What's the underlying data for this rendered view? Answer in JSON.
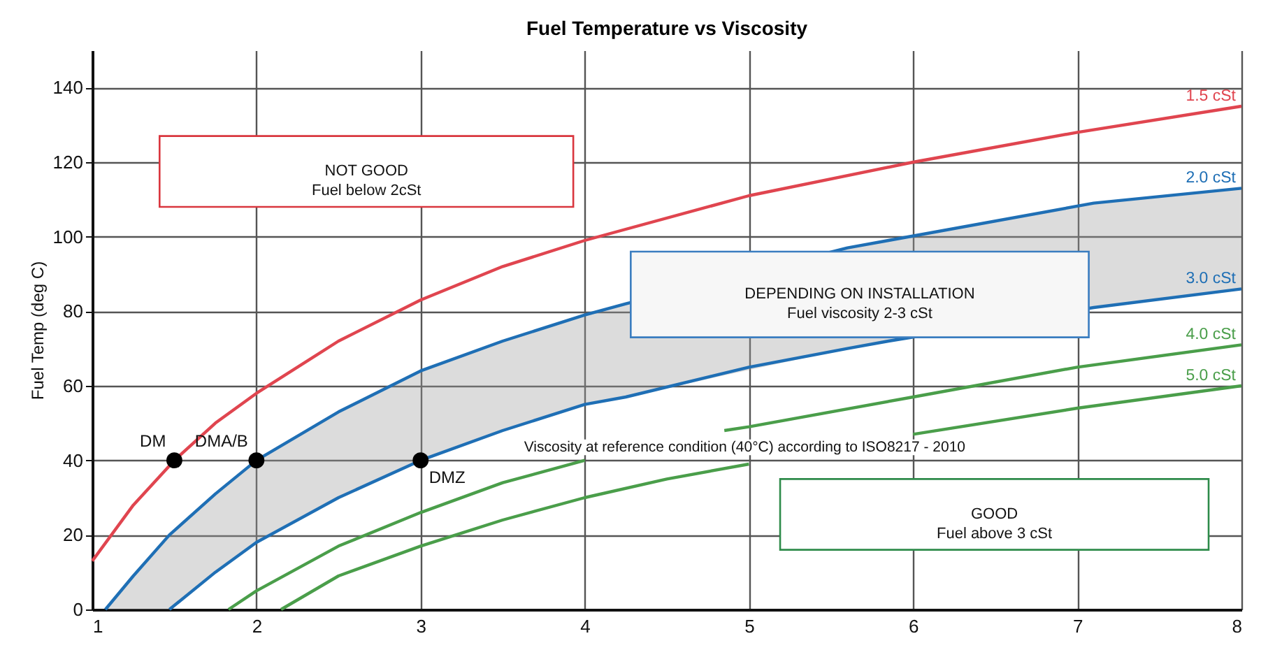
{
  "chart_data": {
    "type": "line",
    "title": "Fuel Temperature vs Viscosity",
    "ylabel": "Fuel Temp (deg C)",
    "xlim": [
      1,
      8
    ],
    "xticks": [
      1,
      2,
      3,
      4,
      5,
      6,
      7,
      8
    ],
    "ylim": [
      0,
      150
    ],
    "yticks": [
      0,
      20,
      40,
      60,
      80,
      100,
      120,
      140
    ],
    "grid": true,
    "marker": "none",
    "line_style": "solid",
    "series": [
      {
        "name": "1.5 cSt",
        "color": "#e0454f",
        "x": [
          1,
          1.25,
          1.5,
          1.75,
          2,
          2.5,
          3,
          3.5,
          4,
          5,
          6,
          7,
          8
        ],
        "values": [
          13,
          28,
          40,
          50,
          58,
          72,
          83,
          92,
          99,
          111,
          120,
          128,
          135
        ]
      },
      {
        "name": "2.0 cSt",
        "color": "#1f6fb5",
        "x": [
          1.08,
          1.25,
          1.47,
          1.75,
          2,
          2.5,
          3,
          3.5,
          4,
          4.25,
          5.6,
          5.85,
          7.1,
          8
        ],
        "values": [
          0,
          9,
          20,
          31,
          40,
          53,
          64,
          72,
          79,
          82,
          97,
          99,
          109,
          113
        ],
        "lower": [
          0,
          0,
          0,
          10,
          18,
          30,
          40,
          48,
          55,
          57,
          70,
          72,
          81,
          86
        ],
        "upper": [
          0,
          9,
          20,
          31,
          40,
          53,
          64,
          72,
          79,
          82,
          97,
          99,
          109,
          113
        ]
      },
      {
        "name": "3.0 cSt",
        "color": "#1f6fb5",
        "x": [
          1.47,
          1.75,
          2,
          2.5,
          3,
          3.5,
          4,
          4.25,
          5,
          5.6,
          5.85,
          7.1,
          8
        ],
        "values": [
          0,
          10,
          18,
          30,
          40,
          48,
          55,
          57,
          65,
          70,
          72,
          81,
          86
        ]
      },
      {
        "name": "4.0 cSt",
        "color": "#4a9e4a",
        "x": [
          1.83,
          2,
          2.5,
          3,
          3.5,
          4,
          4.4,
          4.85,
          5,
          6,
          7,
          8
        ],
        "values": [
          0,
          5,
          17,
          26,
          34,
          40,
          null,
          48,
          49,
          57,
          65,
          71
        ]
      },
      {
        "name": "5.0 cSt",
        "color": "#4a9e4a",
        "x": [
          2.15,
          2.5,
          3,
          3.5,
          4,
          4.5,
          5,
          5.5,
          6,
          7,
          8
        ],
        "values": [
          0,
          9,
          17,
          24,
          30,
          35,
          39,
          null,
          47,
          54,
          60
        ]
      },
      {
        "type": "scatter",
        "color": "#000000",
        "marker": "circle",
        "x": [
          1.5,
          2,
          3
        ],
        "values": [
          40,
          40,
          40
        ]
      }
    ],
    "annotations": [
      "NOT GOOD\nFuel below 2cSt",
      "DEPENDING ON INSTALLATION\nFuel viscosity 2-3 cSt",
      "GOOD\nFuel above 3 cSt",
      "Viscosity at reference condition (40°C) according to ISO8217 - 2010",
      {
        "text": "DM",
        "x": 1.5,
        "y": 40
      },
      {
        "text": "DMA/B",
        "x": 2,
        "y": 40
      },
      {
        "text": "DMZ",
        "x": 3,
        "y": 40
      }
    ]
  }
}
